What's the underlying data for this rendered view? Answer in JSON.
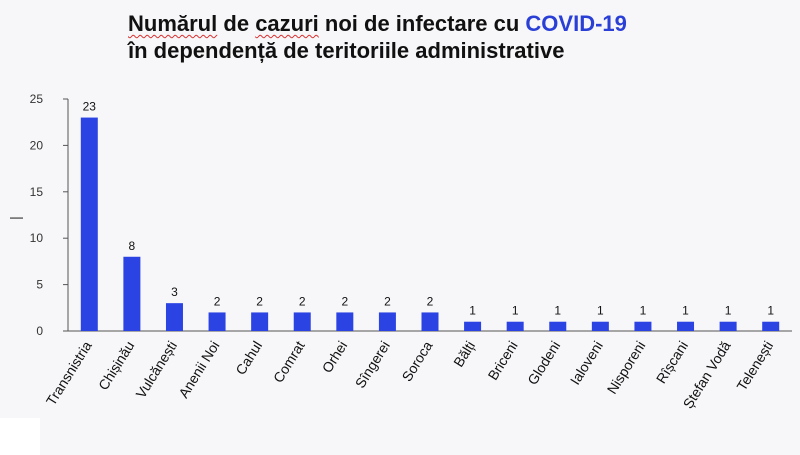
{
  "title": {
    "line1_w1": "Numărul",
    "line1_w2": "de",
    "line1_w3": "cazuri",
    "line1_w4": "noi de infectare cu",
    "line1_w5": "COVID-19",
    "line2": "în dependență de teritoriile administrative"
  },
  "colors": {
    "bar": "#2b43e3",
    "accent": "#2a3fd6",
    "axis": "#555555"
  },
  "chart_data": {
    "type": "bar",
    "categories": [
      "Transnistria",
      "Chișinău",
      "Vulcănești",
      "Anenii Noi",
      "Cahul",
      "Comrat",
      "Orhei",
      "Sîngerei",
      "Soroca",
      "Bălți",
      "Briceni",
      "Glodeni",
      "Ialoveni",
      "Nisporeni",
      "Rîșcani",
      "Ștefan Vodă",
      "Telenești"
    ],
    "values": [
      23,
      8,
      3,
      2,
      2,
      2,
      2,
      2,
      2,
      1,
      1,
      1,
      1,
      1,
      1,
      1,
      1
    ],
    "data_labels": [
      "23",
      "8",
      "3",
      "2",
      "2",
      "2",
      "2",
      "2",
      "2",
      "1",
      "1",
      "1",
      "1",
      "1",
      "1",
      "1",
      "1"
    ],
    "title": "Numărul de cazuri noi de infectare cu COVID-19 în dependență de teritoriile administrative",
    "xlabel": "",
    "ylabel": "|",
    "ylim": [
      0,
      25
    ],
    "yticks": [
      "0",
      "5",
      "10",
      "15",
      "20",
      "25"
    ],
    "grid": false,
    "legend": "none"
  }
}
